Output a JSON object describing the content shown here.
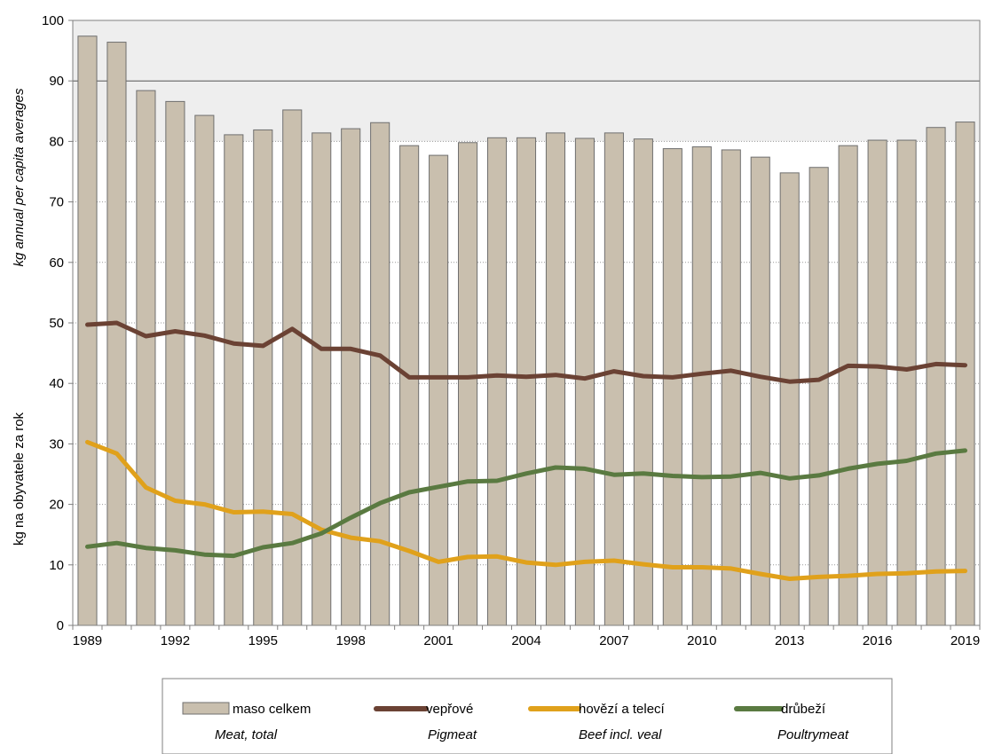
{
  "chart_data": {
    "type": "bar",
    "x": [
      1989,
      1990,
      1991,
      1992,
      1993,
      1994,
      1995,
      1996,
      1997,
      1998,
      1999,
      2000,
      2001,
      2002,
      2003,
      2004,
      2005,
      2006,
      2007,
      2008,
      2009,
      2010,
      2011,
      2012,
      2013,
      2014,
      2015,
      2016,
      2017,
      2018,
      2019
    ],
    "x_tick_labels": [
      "1989",
      "1992",
      "1995",
      "1998",
      "2001",
      "2004",
      "2007",
      "2010",
      "2013",
      "2016",
      "2019"
    ],
    "y_tick_labels": [
      "0",
      "10",
      "20",
      "30",
      "40",
      "50",
      "60",
      "70",
      "80",
      "90",
      "100"
    ],
    "ylim": [
      0,
      100
    ],
    "ylabel_en": "kg annual per capita averages",
    "ylabel_cz": "kg na obyvatele za rok",
    "grid": "horizontal dotted, shaded background above 80",
    "legend_position": "bottom",
    "series": [
      {
        "name": "maso celkem",
        "subname": "Meat, total",
        "kind": "bar",
        "color": "#c9bfae",
        "values": [
          97.4,
          96.4,
          88.4,
          86.6,
          84.3,
          81.1,
          81.9,
          85.2,
          81.4,
          82.1,
          83.1,
          79.3,
          77.7,
          79.8,
          80.6,
          80.6,
          81.4,
          80.5,
          81.4,
          80.4,
          78.8,
          79.1,
          78.6,
          77.4,
          74.8,
          75.7,
          79.3,
          80.2,
          80.2,
          82.3,
          83.2
        ]
      },
      {
        "name": "vepřové",
        "subname": "Pigmeat",
        "kind": "line",
        "color": "#6b4234",
        "values": [
          49.7,
          50.0,
          47.8,
          48.6,
          47.9,
          46.6,
          46.2,
          49.0,
          45.7,
          45.7,
          44.6,
          41.0,
          41.0,
          41.0,
          41.3,
          41.1,
          41.4,
          40.8,
          42.0,
          41.2,
          41.0,
          41.6,
          42.1,
          41.1,
          40.3,
          40.6,
          42.9,
          42.8,
          42.3,
          43.2,
          43.0
        ]
      },
      {
        "name": "hovězí a telecí",
        "subname": "Beef incl. veal",
        "kind": "line",
        "color": "#e0a11b",
        "values": [
          30.3,
          28.4,
          22.8,
          20.6,
          20.0,
          18.7,
          18.8,
          18.4,
          15.8,
          14.5,
          13.9,
          12.3,
          10.5,
          11.3,
          11.4,
          10.4,
          10.0,
          10.5,
          10.7,
          10.1,
          9.6,
          9.6,
          9.4,
          8.5,
          7.7,
          8.0,
          8.2,
          8.5,
          8.6,
          8.9,
          9.0
        ]
      },
      {
        "name": "drůbeží",
        "subname": "Poultrymeat",
        "kind": "line",
        "color": "#5a7a41",
        "values": [
          13.0,
          13.6,
          12.8,
          12.4,
          11.7,
          11.5,
          12.9,
          13.6,
          15.2,
          17.8,
          20.2,
          22.0,
          22.9,
          23.8,
          23.9,
          25.1,
          26.1,
          25.9,
          24.9,
          25.1,
          24.7,
          24.5,
          24.6,
          25.2,
          24.3,
          24.8,
          25.9,
          26.7,
          27.2,
          28.4,
          28.9
        ]
      }
    ]
  }
}
